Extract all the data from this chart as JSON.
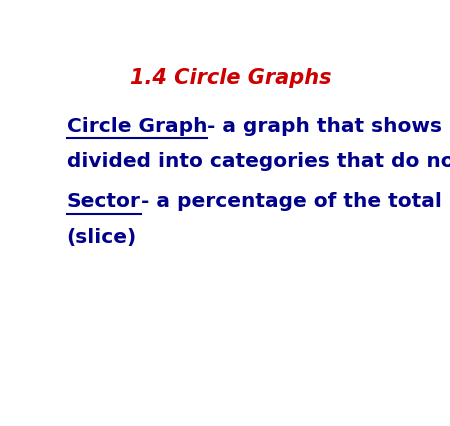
{
  "title": "1.4 Circle Graphs",
  "title_color": "#cc0000",
  "title_fontsize": 15,
  "body_color": "#00008B",
  "body_fontsize": 14.5,
  "background_color": "#ffffff",
  "line1_underline": "Circle Graph",
  "line1_rest_part1": "- a graph that shows how data is",
  "line1_rest_part2": "divided into categories that do not overlap.",
  "line2_underline": "Sector",
  "line2_rest_part1": "- a percentage of the total number of data.",
  "line2_rest_part2": "(slice)"
}
